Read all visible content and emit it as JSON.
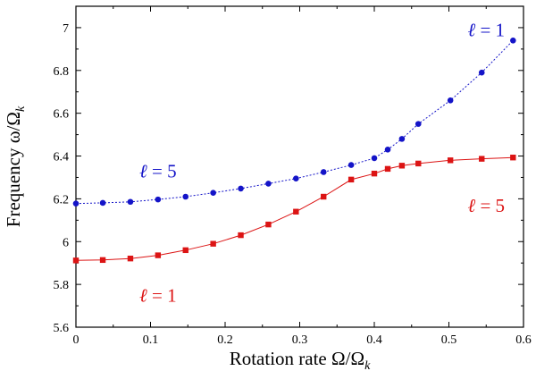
{
  "chart_data": {
    "type": "line",
    "title": "",
    "xlabel": "Rotation rate Ω/Ω",
    "xlabel_sub": "k",
    "ylabel": "Frequency ω/Ω",
    "ylabel_sub": "k",
    "xlim": [
      0,
      0.6
    ],
    "ylim": [
      5.6,
      7.1
    ],
    "xticks": [
      "0",
      "0.1",
      "0.2",
      "0.3",
      "0.4",
      "0.5",
      "0.6"
    ],
    "xtick_values": [
      0,
      0.1,
      0.2,
      0.3,
      0.4,
      0.5,
      0.6
    ],
    "yticks": [
      "5.6",
      "5.8",
      "6",
      "6.2",
      "6.4",
      "6.6",
      "6.8",
      "7"
    ],
    "ytick_values": [
      5.6,
      5.8,
      6.0,
      6.2,
      6.4,
      6.6,
      6.8,
      7.0
    ],
    "grid": false,
    "series": [
      {
        "name": "blue",
        "color": "#1414c8",
        "marker": "circle",
        "line_style": "dotted",
        "x": [
          0,
          0.036,
          0.073,
          0.11,
          0.147,
          0.184,
          0.221,
          0.258,
          0.295,
          0.332,
          0.369,
          0.4,
          0.418,
          0.437,
          0.459,
          0.502,
          0.544,
          0.586
        ],
        "y": [
          6.178,
          6.181,
          6.186,
          6.197,
          6.21,
          6.228,
          6.248,
          6.271,
          6.295,
          6.325,
          6.358,
          6.39,
          6.43,
          6.48,
          6.55,
          6.66,
          6.79,
          6.94
        ]
      },
      {
        "name": "red",
        "color": "#dc1414",
        "marker": "square",
        "line_style": "solid",
        "x": [
          0,
          0.036,
          0.073,
          0.11,
          0.147,
          0.184,
          0.221,
          0.258,
          0.295,
          0.332,
          0.369,
          0.4,
          0.418,
          0.437,
          0.459,
          0.502,
          0.544,
          0.586
        ],
        "y": [
          5.912,
          5.914,
          5.921,
          5.936,
          5.96,
          5.99,
          6.03,
          6.08,
          6.14,
          6.21,
          6.29,
          6.318,
          6.34,
          6.355,
          6.365,
          6.38,
          6.387,
          6.393
        ]
      }
    ],
    "annotations": [
      {
        "prefix": "ℓ",
        "text": " = 1",
        "color": "#1414c8",
        "x": 0.55,
        "y": 6.96
      },
      {
        "prefix": "ℓ",
        "text": " = 5",
        "color": "#1414c8",
        "x": 0.11,
        "y": 6.3
      },
      {
        "prefix": "ℓ",
        "text": " = 5",
        "color": "#dc1414",
        "x": 0.55,
        "y": 6.14
      },
      {
        "prefix": "ℓ",
        "text": " = 1",
        "color": "#dc1414",
        "x": 0.11,
        "y": 5.72
      }
    ]
  }
}
